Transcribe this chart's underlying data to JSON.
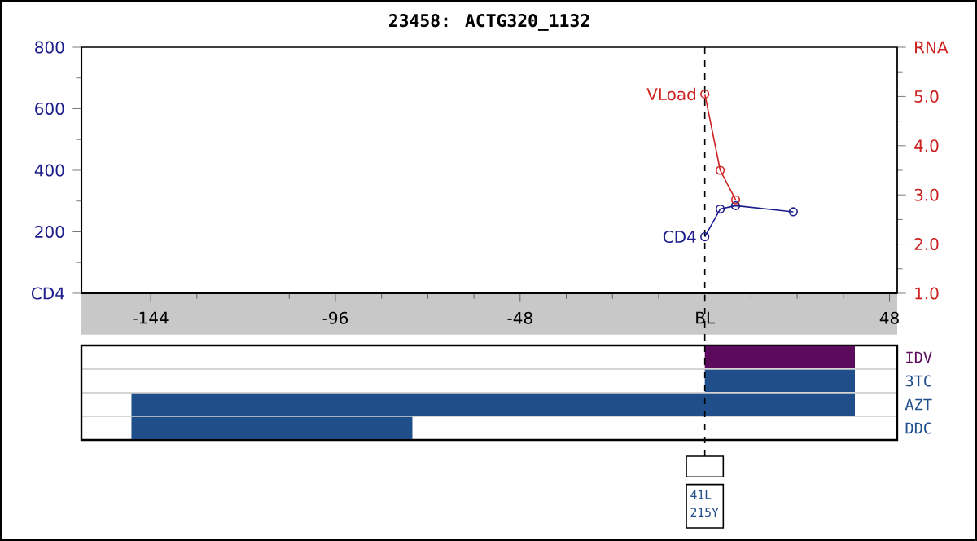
{
  "chart_data": [
    {
      "type": "line",
      "title": "23458: ACTG320_1132",
      "series": [
        {
          "name": "CD4",
          "color": "#1c1c8c",
          "x": [
            0,
            4,
            8,
            23
          ],
          "values": [
            184,
            274,
            285,
            265
          ]
        },
        {
          "name": "VLoad",
          "color": "#cc2020",
          "axis": "y2",
          "x": [
            0,
            4,
            8
          ],
          "values": [
            5.05,
            3.5,
            2.9
          ]
        }
      ],
      "xlim": [
        -162,
        50
      ],
      "xticks": [
        -144,
        -96,
        -48,
        {
          "value": 0,
          "label": "BL"
        },
        48
      ],
      "ylim": [
        0,
        800
      ],
      "yticks": [
        {
          "value": 0,
          "label": "CD4"
        },
        200,
        400,
        600,
        800
      ],
      "y2lim": [
        1,
        6
      ],
      "y2ticks": [
        {
          "value": 1,
          "label": "1.0"
        },
        {
          "value": 2,
          "label": "2.0"
        },
        {
          "value": 3,
          "label": "3.0"
        },
        {
          "value": 4,
          "label": "4.0"
        },
        {
          "value": 5,
          "label": "5.0"
        },
        {
          "value": 6,
          "label": "RNA"
        }
      ],
      "marker": "circle",
      "ref_lines": [
        {
          "axis": "x",
          "value": 0,
          "line_style": "dashed",
          "color": "#000000"
        }
      ]
    },
    {
      "type": "bar",
      "orientation": "horizontal",
      "categories": [
        "IDV",
        "3TC",
        "AZT",
        "DDC"
      ],
      "values": [
        39,
        39,
        188,
        73
      ],
      "base": [
        0,
        0,
        -149,
        -149
      ],
      "colors": [
        "#5c0a5c",
        "#1f4e8a",
        "#1f4e8a",
        "#1f4e8a"
      ],
      "xlim": [
        -162,
        50
      ],
      "tick_labels": "y",
      "grid": "y",
      "ref_lines": [
        {
          "axis": "x",
          "value": 0,
          "line_style": "dashed",
          "color": "#000000"
        }
      ],
      "annotations": [
        "41L",
        "215Y"
      ]
    }
  ]
}
